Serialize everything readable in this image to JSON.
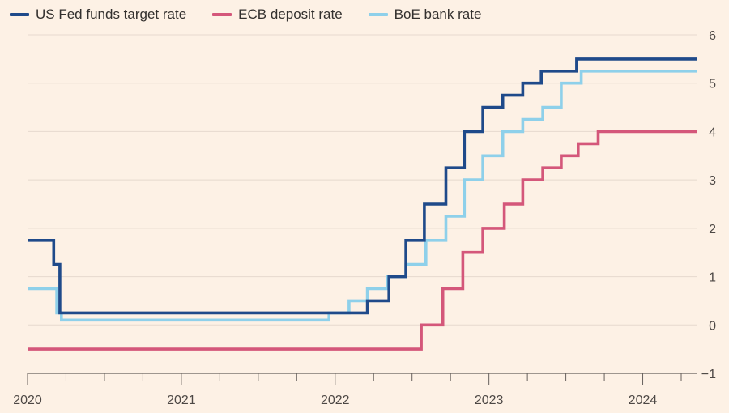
{
  "chart_data": {
    "type": "line",
    "step": true,
    "title": "",
    "xlabel": "",
    "ylabel": "",
    "ylim": [
      -1,
      6
    ],
    "yticks": [
      -1,
      0,
      1,
      2,
      3,
      4,
      5,
      6
    ],
    "xlim": [
      2020.0,
      2024.35
    ],
    "xticks": [
      {
        "value": 2020,
        "label": "2020"
      },
      {
        "value": 2021,
        "label": "2021"
      },
      {
        "value": 2022,
        "label": "2022"
      },
      {
        "value": 2023,
        "label": "2023"
      },
      {
        "value": 2024,
        "label": "2024"
      }
    ],
    "grid": "horizontal",
    "legend_position": "top-left",
    "series": [
      {
        "name": "US Fed funds target rate",
        "color": "#1f4a8a",
        "points": [
          [
            2020.0,
            1.75
          ],
          [
            2020.17,
            1.25
          ],
          [
            2020.21,
            0.25
          ],
          [
            2022.21,
            0.5
          ],
          [
            2022.35,
            1.0
          ],
          [
            2022.46,
            1.75
          ],
          [
            2022.58,
            2.5
          ],
          [
            2022.72,
            3.25
          ],
          [
            2022.84,
            4.0
          ],
          [
            2022.96,
            4.5
          ],
          [
            2023.09,
            4.75
          ],
          [
            2023.22,
            5.0
          ],
          [
            2023.34,
            5.25
          ],
          [
            2023.57,
            5.5
          ],
          [
            2024.35,
            5.5
          ]
        ]
      },
      {
        "name": "ECB deposit rate",
        "color": "#d4577a",
        "points": [
          [
            2020.0,
            -0.5
          ],
          [
            2022.56,
            0.0
          ],
          [
            2022.7,
            0.75
          ],
          [
            2022.83,
            1.5
          ],
          [
            2022.96,
            2.0
          ],
          [
            2023.1,
            2.5
          ],
          [
            2023.22,
            3.0
          ],
          [
            2023.35,
            3.25
          ],
          [
            2023.47,
            3.5
          ],
          [
            2023.58,
            3.75
          ],
          [
            2023.71,
            4.0
          ],
          [
            2024.35,
            4.0
          ]
        ]
      },
      {
        "name": "BoE bank rate",
        "color": "#8ed0ea",
        "points": [
          [
            2020.0,
            0.75
          ],
          [
            2020.19,
            0.25
          ],
          [
            2020.22,
            0.1
          ],
          [
            2021.96,
            0.25
          ],
          [
            2022.09,
            0.5
          ],
          [
            2022.21,
            0.75
          ],
          [
            2022.34,
            1.0
          ],
          [
            2022.46,
            1.25
          ],
          [
            2022.59,
            1.75
          ],
          [
            2022.72,
            2.25
          ],
          [
            2022.84,
            3.0
          ],
          [
            2022.96,
            3.5
          ],
          [
            2023.09,
            4.0
          ],
          [
            2023.22,
            4.25
          ],
          [
            2023.35,
            4.5
          ],
          [
            2023.47,
            5.0
          ],
          [
            2023.6,
            5.25
          ],
          [
            2024.35,
            5.25
          ]
        ]
      }
    ]
  }
}
